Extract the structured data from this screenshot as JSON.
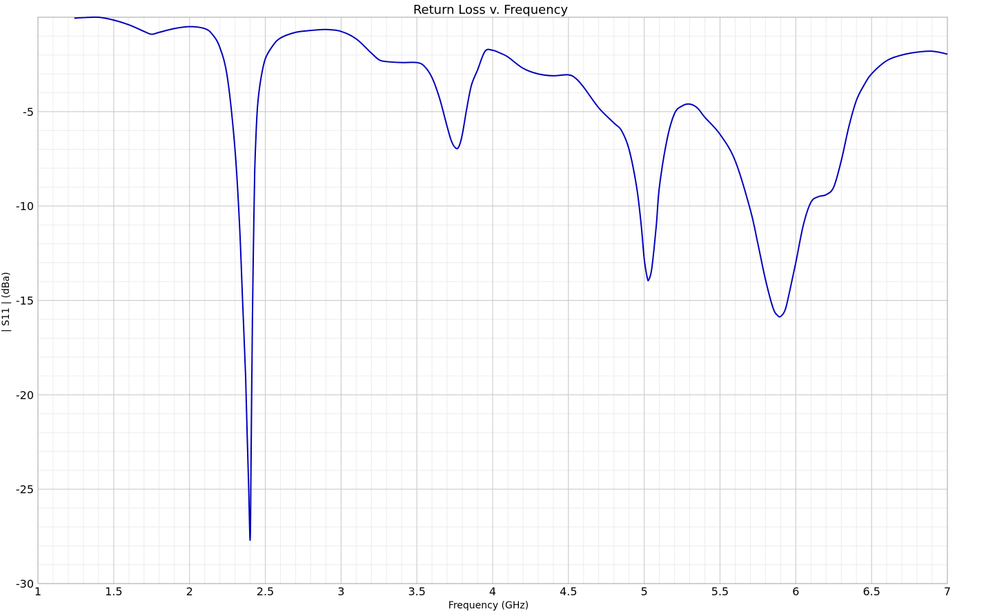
{
  "chart_data": {
    "type": "line",
    "title": "Return Loss v. Frequency",
    "xlabel": "Frequency (GHz)",
    "ylabel": "| S11 | (dBa)",
    "xlim": [
      1,
      7
    ],
    "ylim": [
      -30,
      0
    ],
    "xticks": [
      1,
      1.5,
      2,
      2.5,
      3,
      3.5,
      4,
      4.5,
      5,
      5.5,
      6,
      6.5,
      7
    ],
    "xtick_labels": [
      "1",
      "1.5",
      "2",
      "2.5",
      "3",
      "3.5",
      "4",
      "4.5",
      "5",
      "5.5",
      "6",
      "6.5",
      "7"
    ],
    "yticks": [
      -5,
      -10,
      -15,
      -20,
      -25,
      -30
    ],
    "ytick_labels": [
      "-5",
      "-10",
      "-15",
      "-20",
      "-25",
      "-30"
    ],
    "grid": true,
    "minor_grid": true,
    "line_color": "#0000bb",
    "background_color": "#ffffff",
    "series": [
      {
        "x": [
          1.24,
          1.3,
          1.4,
          1.5,
          1.6,
          1.7,
          1.75,
          1.8,
          1.9,
          2.0,
          2.1,
          2.15,
          2.2,
          2.25,
          2.3,
          2.33,
          2.35,
          2.37,
          2.38,
          2.39,
          2.4,
          2.405,
          2.41,
          2.415,
          2.42,
          2.425,
          2.43,
          2.44,
          2.45,
          2.47,
          2.5,
          2.55,
          2.6,
          2.7,
          2.8,
          2.9,
          3.0,
          3.1,
          3.2,
          3.25,
          3.3,
          3.4,
          3.5,
          3.55,
          3.6,
          3.65,
          3.7,
          3.73,
          3.76,
          3.78,
          3.8,
          3.83,
          3.86,
          3.9,
          3.95,
          4.0,
          4.05,
          4.1,
          4.2,
          4.3,
          4.4,
          4.5,
          4.55,
          4.6,
          4.7,
          4.8,
          4.85,
          4.9,
          4.95,
          4.98,
          5.0,
          5.02,
          5.03,
          5.05,
          5.08,
          5.1,
          5.15,
          5.2,
          5.25,
          5.3,
          5.35,
          5.4,
          5.5,
          5.6,
          5.7,
          5.75,
          5.8,
          5.85,
          5.88,
          5.9,
          5.93,
          5.96,
          6.0,
          6.05,
          6.1,
          6.15,
          6.2,
          6.25,
          6.3,
          6.35,
          6.4,
          6.45,
          6.5,
          6.6,
          6.7,
          6.8,
          6.9,
          7.0
        ],
        "y": [
          -0.05,
          -0.02,
          0.0,
          -0.15,
          -0.4,
          -0.75,
          -0.9,
          -0.8,
          -0.6,
          -0.5,
          -0.6,
          -0.9,
          -1.6,
          -3.2,
          -7.0,
          -11.0,
          -15.0,
          -19.0,
          -22.0,
          -24.8,
          -27.7,
          -24.5,
          -20.0,
          -16.0,
          -13.0,
          -10.5,
          -8.2,
          -6.0,
          -4.6,
          -3.3,
          -2.2,
          -1.5,
          -1.1,
          -0.8,
          -0.7,
          -0.65,
          -0.75,
          -1.15,
          -1.9,
          -2.25,
          -2.35,
          -2.4,
          -2.4,
          -2.6,
          -3.2,
          -4.3,
          -5.8,
          -6.6,
          -6.95,
          -6.8,
          -6.2,
          -4.8,
          -3.6,
          -2.8,
          -1.8,
          -1.75,
          -1.9,
          -2.1,
          -2.7,
          -3.0,
          -3.1,
          -3.05,
          -3.25,
          -3.7,
          -4.8,
          -5.6,
          -6.0,
          -7.0,
          -9.0,
          -11.0,
          -12.8,
          -13.8,
          -13.9,
          -13.3,
          -11.0,
          -9.0,
          -6.5,
          -5.1,
          -4.7,
          -4.6,
          -4.8,
          -5.3,
          -6.2,
          -7.6,
          -10.2,
          -12.0,
          -13.9,
          -15.4,
          -15.8,
          -15.85,
          -15.5,
          -14.5,
          -13.0,
          -11.0,
          -9.8,
          -9.5,
          -9.4,
          -9.0,
          -7.6,
          -5.8,
          -4.4,
          -3.6,
          -3.0,
          -2.3,
          -2.0,
          -1.85,
          -1.8,
          -1.95
        ]
      }
    ]
  }
}
